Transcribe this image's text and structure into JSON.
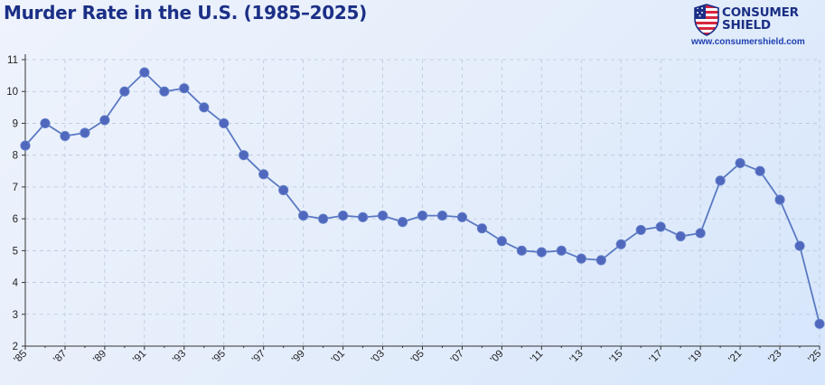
{
  "title": "Murder Rate in the U.S. (1985–2025)",
  "brand": {
    "name_line1": "CONSUMER",
    "name_line2": "SHIELD",
    "url": "www.consumershield.com",
    "logo_icon": "us-flag-shield-icon"
  },
  "colors": {
    "title": "#1b2f86",
    "line": "#5a79c4",
    "marker": "#4f68bd",
    "grid": "#b9c6dc"
  },
  "chart_data": {
    "type": "line",
    "x": [
      1985,
      1986,
      1987,
      1988,
      1989,
      1990,
      1991,
      1992,
      1993,
      1994,
      1995,
      1996,
      1997,
      1998,
      1999,
      2000,
      2001,
      2002,
      2003,
      2004,
      2005,
      2006,
      2007,
      2008,
      2009,
      2010,
      2011,
      2012,
      2013,
      2014,
      2015,
      2016,
      2017,
      2018,
      2019,
      2020,
      2021,
      2022,
      2023,
      2024,
      2025
    ],
    "series": [
      {
        "values": [
          8.3,
          9.0,
          8.6,
          8.7,
          9.1,
          10.0,
          10.6,
          10.0,
          10.1,
          9.5,
          9.0,
          8.0,
          7.4,
          6.9,
          6.1,
          6.0,
          6.1,
          6.05,
          6.1,
          5.9,
          6.1,
          6.1,
          6.05,
          5.7,
          5.3,
          5.0,
          4.95,
          5.0,
          4.75,
          4.7,
          5.2,
          5.65,
          5.75,
          5.45,
          5.55,
          7.2,
          7.75,
          7.5,
          6.6,
          5.15,
          2.7
        ]
      }
    ],
    "x_tick_labels": [
      "'85",
      "'87",
      "'89",
      "'91",
      "'93",
      "'95",
      "'97",
      "'99",
      "'01",
      "'03",
      "'05",
      "'07",
      "'09",
      "'11",
      "'13",
      "'15",
      "'17",
      "'19",
      "'21",
      "'23",
      "'25"
    ],
    "y_ticks": [
      2,
      3,
      4,
      5,
      6,
      7,
      8,
      9,
      10,
      11
    ],
    "xlim": [
      1985,
      2025
    ],
    "ylim": [
      2,
      11
    ],
    "xlabel": "",
    "ylabel": "",
    "grid": true,
    "legend": "none"
  }
}
